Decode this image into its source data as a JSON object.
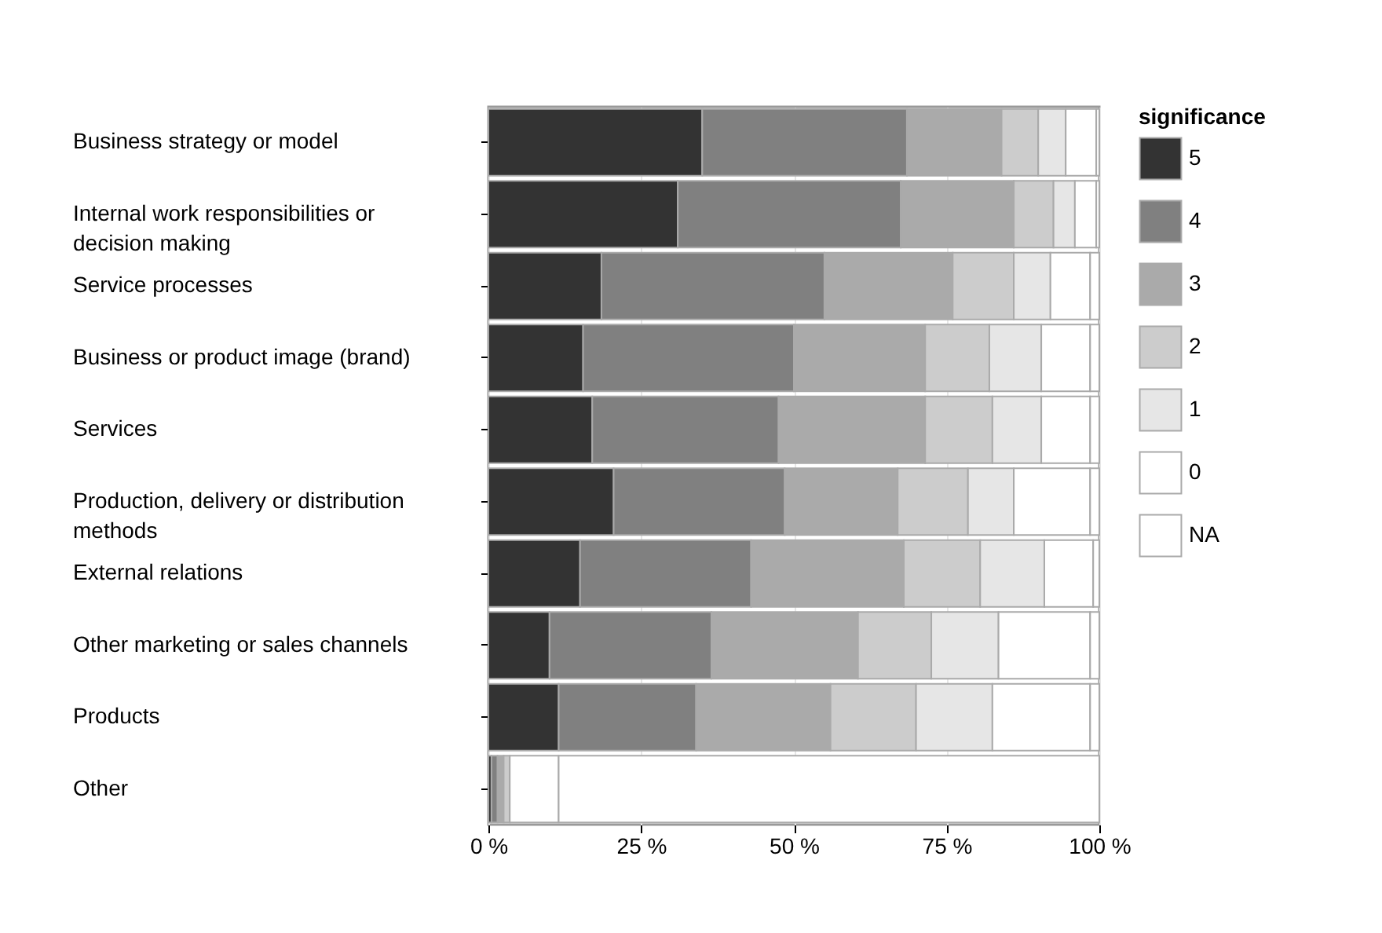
{
  "chart_data": {
    "type": "bar",
    "orientation": "horizontal",
    "stacked": true,
    "categories": [
      "Business strategy or model",
      "Internal work responsibilities or decision making",
      "Service processes",
      "Business or product image (brand)",
      "Services",
      "Production, delivery or distribution methods",
      "External relations",
      "Other marketing or sales channels",
      "Products",
      "Other"
    ],
    "series": [
      {
        "name": "5",
        "color": "#333333",
        "values": [
          35,
          31,
          18.5,
          15.5,
          17,
          20.5,
          15,
          10,
          11.5,
          0.5
        ]
      },
      {
        "name": "4",
        "color": "#808080",
        "values": [
          33.5,
          36.5,
          36.5,
          34.5,
          30.5,
          28,
          28,
          26.5,
          22.5,
          1
        ]
      },
      {
        "name": "3",
        "color": "#aaaaaa",
        "values": [
          15.5,
          18.5,
          21,
          21.5,
          24,
          18.5,
          25,
          24,
          22,
          1
        ]
      },
      {
        "name": "2",
        "color": "#cccccc",
        "values": [
          6,
          6.5,
          10,
          10.5,
          11,
          11.5,
          12.5,
          12,
          14,
          1
        ]
      },
      {
        "name": "1",
        "color": "#e6e6e6",
        "values": [
          4.5,
          3.5,
          6,
          8.5,
          8,
          7.5,
          10.5,
          11,
          12.5,
          0
        ]
      },
      {
        "name": "0",
        "color": "#ffffff",
        "values": [
          5,
          3.5,
          6.5,
          8,
          8,
          12.5,
          8,
          15,
          16,
          8
        ]
      },
      {
        "name": "NA",
        "color": "#ffffff",
        "values": [
          0.5,
          0.5,
          1.5,
          1.5,
          1.5,
          1.5,
          1,
          1.5,
          1.5,
          88.5
        ]
      }
    ],
    "xlim": [
      0,
      100
    ],
    "xticks": [
      {
        "value": 0,
        "label": "0 %"
      },
      {
        "value": 25,
        "label": "25 %"
      },
      {
        "value": 50,
        "label": "50 %"
      },
      {
        "value": 75,
        "label": "75 %"
      },
      {
        "value": 100,
        "label": "100 %"
      }
    ],
    "legend_title": "significance",
    "legend": "right",
    "grid": "x"
  }
}
